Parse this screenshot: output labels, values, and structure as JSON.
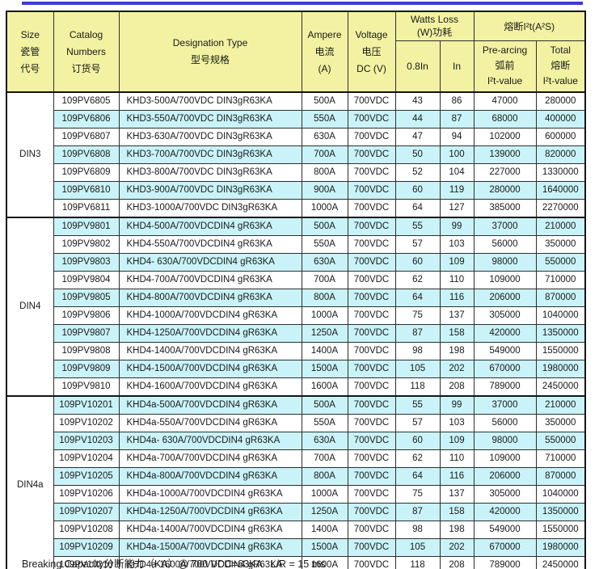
{
  "colors": {
    "top_rule": "#3b3bd4",
    "header_bg": "#f2f2a2",
    "band_cyan": "#c9f3f8",
    "band_white": "#ffffff",
    "border_dark": "#151515"
  },
  "table": {
    "header": {
      "size": [
        "Size",
        "瓷管",
        "代号"
      ],
      "catalog": [
        "Catalog",
        "Numbers",
        "订货号"
      ],
      "designation": [
        "Designation Type",
        "型号规格"
      ],
      "ampere": [
        "Ampere",
        "电流",
        "(A)"
      ],
      "voltage": [
        "Voltage",
        "电压",
        "DC (V)"
      ],
      "watts_loss_group": [
        "Watts Loss",
        "(W)功耗"
      ],
      "sub_08in": "0.8In",
      "sub_in": "In",
      "i2t_group": "熔断I²t(A²S)",
      "pre_arcing": [
        "Pre-arcing",
        "弧前",
        "I²t-value"
      ],
      "total": [
        "Total",
        "熔断",
        "I²t-value"
      ]
    },
    "groups": [
      {
        "size": "DIN3",
        "rows": [
          {
            "catalog": "109PV6805",
            "designation": "KHD3-500A/700VDC DIN3gR63KA",
            "ampere": "500A",
            "voltage": "700VDC",
            "w_08in": "43",
            "w_in": "86",
            "pre_arcing": "47000",
            "total": "280000"
          },
          {
            "catalog": "109PV6806",
            "designation": "KHD3-550A/700VDC DIN3gR63KA",
            "ampere": "550A",
            "voltage": "700VDC",
            "w_08in": "44",
            "w_in": "87",
            "pre_arcing": "68000",
            "total": "400000"
          },
          {
            "catalog": "109PV6807",
            "designation": "KHD3-630A/700VDC DIN3gR63KA",
            "ampere": "630A",
            "voltage": "700VDC",
            "w_08in": "47",
            "w_in": "94",
            "pre_arcing": "102000",
            "total": "600000"
          },
          {
            "catalog": "109PV6808",
            "designation": "KHD3-700A/700VDC DIN3gR63KA",
            "ampere": "700A",
            "voltage": "700VDC",
            "w_08in": "50",
            "w_in": "100",
            "pre_arcing": "139000",
            "total": "820000"
          },
          {
            "catalog": "109PV6809",
            "designation": "KHD3-800A/700VDC DIN3gR63KA",
            "ampere": "800A",
            "voltage": "700VDC",
            "w_08in": "52",
            "w_in": "104",
            "pre_arcing": "227000",
            "total": "1330000"
          },
          {
            "catalog": "109PV6810",
            "designation": "KHD3-900A/700VDC DIN3gR63KA",
            "ampere": "900A",
            "voltage": "700VDC",
            "w_08in": "60",
            "w_in": "119",
            "pre_arcing": "280000",
            "total": "1640000"
          },
          {
            "catalog": "109PV6811",
            "designation": "KHD3-1000A/700VDC DIN3gR63KA",
            "ampere": "1000A",
            "voltage": "700VDC",
            "w_08in": "64",
            "w_in": "127",
            "pre_arcing": "385000",
            "total": "2270000"
          }
        ]
      },
      {
        "size": "DIN4",
        "rows": [
          {
            "catalog": "109PV9801",
            "designation": "KHD4-500A/700VDCDIN4 gR63KA",
            "ampere": "500A",
            "voltage": "700VDC",
            "w_08in": "55",
            "w_in": "99",
            "pre_arcing": "37000",
            "total": "210000"
          },
          {
            "catalog": "109PV9802",
            "designation": "KHD4-550A/700VDCDIN4 gR63KA",
            "ampere": "550A",
            "voltage": "700VDC",
            "w_08in": "57",
            "w_in": "103",
            "pre_arcing": "56000",
            "total": "350000"
          },
          {
            "catalog": "109PV9803",
            "designation": "KHD4- 630A/700VDCDIN4 gR63KA",
            "ampere": "630A",
            "voltage": "700VDC",
            "w_08in": "60",
            "w_in": "109",
            "pre_arcing": "98000",
            "total": "550000"
          },
          {
            "catalog": "109PV9804",
            "designation": "KHD4-700A/700VDCDIN4 gR63KA",
            "ampere": "700A",
            "voltage": "700VDC",
            "w_08in": "62",
            "w_in": "110",
            "pre_arcing": "109000",
            "total": "710000"
          },
          {
            "catalog": "109PV9805",
            "designation": "KHD4-800A/700VDCDIN4 gR63KA",
            "ampere": "800A",
            "voltage": "700VDC",
            "w_08in": "64",
            "w_in": "116",
            "pre_arcing": "206000",
            "total": "870000"
          },
          {
            "catalog": "109PV9806",
            "designation": "KHD4-1000A/700VDCDIN4 gR63KA",
            "ampere": "1000A",
            "voltage": "700VDC",
            "w_08in": "75",
            "w_in": "137",
            "pre_arcing": "305000",
            "total": "1040000"
          },
          {
            "catalog": "109PV9807",
            "designation": "KHD4-1250A/700VDCDIN4 gR63KA",
            "ampere": "1250A",
            "voltage": "700VDC",
            "w_08in": "87",
            "w_in": "158",
            "pre_arcing": "420000",
            "total": "1350000"
          },
          {
            "catalog": "109PV9808",
            "designation": "KHD4-1400A/700VDCDIN4 gR63KA",
            "ampere": "1400A",
            "voltage": "700VDC",
            "w_08in": "98",
            "w_in": "198",
            "pre_arcing": "549000",
            "total": "1550000"
          },
          {
            "catalog": "109PV9809",
            "designation": "KHD4-1500A/700VDCDIN4 gR63KA",
            "ampere": "1500A",
            "voltage": "700VDC",
            "w_08in": "105",
            "w_in": "202",
            "pre_arcing": "670000",
            "total": "1980000"
          },
          {
            "catalog": "109PV9810",
            "designation": "KHD4-1600A/700VDCDIN4 gR63KA",
            "ampere": "1600A",
            "voltage": "700VDC",
            "w_08in": "118",
            "w_in": "208",
            "pre_arcing": "789000",
            "total": "2450000"
          }
        ]
      },
      {
        "size": "DIN4a",
        "rows": [
          {
            "catalog": "109PV10201",
            "designation": "KHD4a-500A/700VDCDIN4 gR63KA",
            "ampere": "500A",
            "voltage": "700VDC",
            "w_08in": "55",
            "w_in": "99",
            "pre_arcing": "37000",
            "total": "210000"
          },
          {
            "catalog": "109PV10202",
            "designation": "KHD4a-550A/700VDCDIN4 gR63KA",
            "ampere": "550A",
            "voltage": "700VDC",
            "w_08in": "57",
            "w_in": "103",
            "pre_arcing": "56000",
            "total": "350000"
          },
          {
            "catalog": "109PV10203",
            "designation": "KHD4a- 630A/700VDCDIN4 gR63KA",
            "ampere": "630A",
            "voltage": "700VDC",
            "w_08in": "60",
            "w_in": "109",
            "pre_arcing": "98000",
            "total": "550000"
          },
          {
            "catalog": "109PV10204",
            "designation": "KHD4a-700A/700VDCDIN4 gR63KA",
            "ampere": "700A",
            "voltage": "700VDC",
            "w_08in": "62",
            "w_in": "110",
            "pre_arcing": "109000",
            "total": "710000"
          },
          {
            "catalog": "109PV10205",
            "designation": "KHD4a-800A/700VDCDIN4 gR63KA",
            "ampere": "800A",
            "voltage": "700VDC",
            "w_08in": "64",
            "w_in": "116",
            "pre_arcing": "206000",
            "total": "870000"
          },
          {
            "catalog": "109PV10206",
            "designation": "KHD4a-1000A/700VDCDIN4 gR63KA",
            "ampere": "1000A",
            "voltage": "700VDC",
            "w_08in": "75",
            "w_in": "137",
            "pre_arcing": "305000",
            "total": "1040000"
          },
          {
            "catalog": "109PV10207",
            "designation": "KHD4a-1250A/700VDCDIN4 gR63KA",
            "ampere": "1250A",
            "voltage": "700VDC",
            "w_08in": "87",
            "w_in": "158",
            "pre_arcing": "420000",
            "total": "1350000"
          },
          {
            "catalog": "109PV10208",
            "designation": "KHD4a-1400A/700VDCDIN4 gR63KA",
            "ampere": "1400A",
            "voltage": "700VDC",
            "w_08in": "98",
            "w_in": "198",
            "pre_arcing": "549000",
            "total": "1550000"
          },
          {
            "catalog": "109PV10209",
            "designation": "KHD4a-1500A/700VDCDIN4 gR63KA",
            "ampere": "1500A",
            "voltage": "700VDC",
            "w_08in": "105",
            "w_in": "202",
            "pre_arcing": "670000",
            "total": "1980000"
          },
          {
            "catalog": "109PV10210",
            "designation": "KHD4a-1600A/700VDCDIN4 gR63KA",
            "ampere": "1600A",
            "voltage": "700VDC",
            "w_08in": "118",
            "w_in": "208",
            "pre_arcing": "789000",
            "total": "2450000"
          }
        ]
      }
    ]
  },
  "footer": {
    "text": "Breaking Capacity分断能力（KA）@ 700 VDC=63KA   L/R = 15 ms"
  }
}
